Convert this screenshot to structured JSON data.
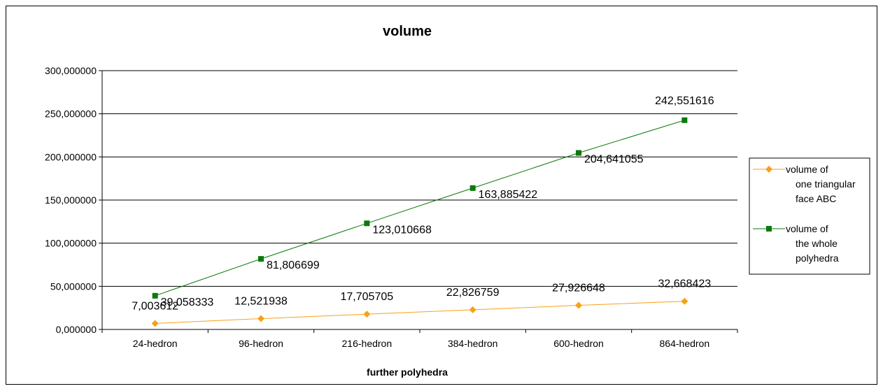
{
  "chart_data": {
    "type": "line",
    "title": "volume",
    "xlabel": "further polyhedra",
    "ylabel": "",
    "categories": [
      "24-hedron",
      "96-hedron",
      "216-hedron",
      "384-hedron",
      "600-hedron",
      "864-hedron"
    ],
    "ylim": [
      0,
      300
    ],
    "y_ticks": [
      0,
      50,
      100,
      150,
      200,
      250,
      300
    ],
    "y_tick_labels": [
      "0,000000",
      "50,000000",
      "100,000000",
      "150,000000",
      "200,000000",
      "250,000000",
      "300,000000"
    ],
    "grid": true,
    "legend_position": "right",
    "series": [
      {
        "name": "volume of one triangular face ABC",
        "legend_lines": [
          "volume of",
          "one triangular",
          "face ABC"
        ],
        "color": "#f7a11a",
        "marker": "diamond",
        "values": [
          7.003612,
          12.521938,
          17.705705,
          22.826759,
          27.926648,
          32.668423
        ],
        "labels": [
          "7,003612",
          "12,521938",
          "17,705705",
          "22,826759",
          "27,926648",
          "32,668423"
        ]
      },
      {
        "name": "volume of the whole polyhedra",
        "legend_lines": [
          "volume of",
          "the whole",
          "polyhedra"
        ],
        "color": "#0b7a0b",
        "marker": "square",
        "values": [
          39.058333,
          81.806699,
          123.010668,
          163.885422,
          204.641055,
          242.551616
        ],
        "labels": [
          "39,058333",
          "81,806699",
          "123,010668",
          "163,885422",
          "204,641055",
          "242,551616"
        ]
      }
    ]
  }
}
